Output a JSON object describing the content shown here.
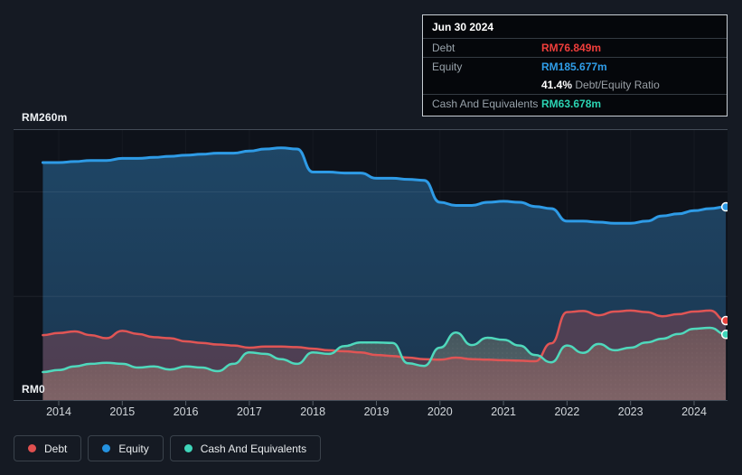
{
  "tooltip": {
    "date": "Jun 30 2024",
    "debt_label": "Debt",
    "debt_value": "RM76.849m",
    "equity_label": "Equity",
    "equity_value": "RM185.677m",
    "ratio_value": "41.4%",
    "ratio_label": "Debt/Equity Ratio",
    "cash_label": "Cash And Equivalents",
    "cash_value": "RM63.678m"
  },
  "axis": {
    "y_top_label": "RM260m",
    "y_bottom_label": "RM0",
    "years": [
      "2014",
      "2015",
      "2016",
      "2017",
      "2018",
      "2019",
      "2020",
      "2021",
      "2022",
      "2023",
      "2024"
    ]
  },
  "legend": [
    {
      "label": "Debt",
      "color": "#e0504f"
    },
    {
      "label": "Equity",
      "color": "#2492e0"
    },
    {
      "label": "Cash And Equivalents",
      "color": "#3fd5b9"
    }
  ],
  "colors": {
    "background": "#151a23",
    "plot_background": "#0e121a",
    "debt_line": "#e05555",
    "equity_line": "#2e9be6",
    "cash_line": "#4fd8bc",
    "debt_value_text": "#ef3e3b",
    "equity_value_text": "#2f9de8",
    "cash_value_text": "#2bd3b2"
  },
  "chart_data": {
    "type": "area",
    "unit": "RM millions",
    "x_start": 2013.75,
    "x_step": 0.25,
    "ylim": [
      0,
      260
    ],
    "x_ticks": [
      2014,
      2015,
      2016,
      2017,
      2018,
      2019,
      2020,
      2021,
      2022,
      2023,
      2024
    ],
    "y_gridlines": [
      100,
      200
    ],
    "legend_position": "bottom-left",
    "series": [
      {
        "name": "Debt",
        "color": "#e05555",
        "values": [
          63,
          65,
          66.5,
          63,
          60,
          67,
          64,
          61,
          60,
          57,
          55.5,
          54,
          53,
          51,
          52,
          52,
          51.5,
          50,
          48.5,
          47.5,
          46.5,
          44,
          43,
          41.5,
          40,
          39.5,
          41.5,
          40,
          39.5,
          39,
          38.5,
          38,
          55,
          85,
          86,
          82,
          85.5,
          86.5,
          85,
          81,
          83,
          85.5,
          86.5,
          76.849
        ]
      },
      {
        "name": "Equity",
        "color": "#2e9be6",
        "values": [
          228,
          228,
          229,
          230,
          230,
          232,
          232,
          233,
          234,
          235,
          236,
          237,
          237,
          239,
          241,
          242,
          241,
          219,
          219,
          218,
          218,
          213,
          213,
          212,
          211,
          190,
          187,
          187,
          190,
          191,
          190,
          186,
          184,
          172,
          172,
          171,
          170,
          170,
          172,
          177,
          179,
          182,
          184,
          185.677
        ]
      },
      {
        "name": "Cash And Equivalents",
        "color": "#4fd8bc",
        "values": [
          27.6,
          29.5,
          33,
          35.5,
          36.5,
          35.5,
          32,
          33,
          30,
          33,
          32,
          28.5,
          35.5,
          46.5,
          45,
          40,
          35.5,
          46.5,
          45,
          52.5,
          56,
          56,
          55.5,
          36,
          33.5,
          51,
          65.5,
          53.5,
          60.5,
          58.5,
          53,
          44,
          37,
          53,
          46,
          54.5,
          48.5,
          51,
          56,
          59.5,
          64,
          69,
          70,
          63.678
        ]
      }
    ]
  }
}
